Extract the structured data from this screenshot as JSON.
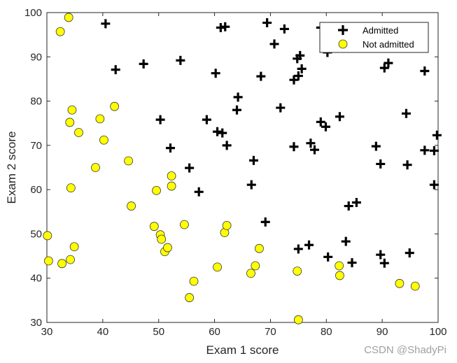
{
  "chart_data": {
    "type": "scatter",
    "xlabel": "Exam 1 score",
    "ylabel": "Exam 2 score",
    "xlim": [
      30,
      100
    ],
    "ylim": [
      30,
      100
    ],
    "xticks": [
      "30",
      "40",
      "50",
      "60",
      "70",
      "80",
      "90",
      "100"
    ],
    "yticks": [
      "30",
      "40",
      "50",
      "60",
      "70",
      "80",
      "90",
      "100"
    ],
    "grid": false,
    "legend_position": "top-right",
    "series": [
      {
        "name": "Admitted",
        "marker": "plus",
        "color": "#000000",
        "points": [
          [
            40.5,
            97.5
          ],
          [
            61.1,
            96.6
          ],
          [
            61.9,
            96.8
          ],
          [
            69.4,
            97.7
          ],
          [
            72.5,
            96.3
          ],
          [
            70.7,
            92.9
          ],
          [
            79.0,
            96.6
          ],
          [
            80.2,
            91.0
          ],
          [
            74.8,
            89.6
          ],
          [
            75.3,
            90.3
          ],
          [
            74.2,
            84.8
          ],
          [
            75.0,
            85.7
          ],
          [
            75.6,
            87.3
          ],
          [
            68.3,
            85.6
          ],
          [
            60.2,
            86.3
          ],
          [
            53.9,
            89.2
          ],
          [
            47.3,
            88.4
          ],
          [
            42.3,
            87.1
          ],
          [
            90.4,
            87.5
          ],
          [
            91.1,
            88.6
          ],
          [
            97.6,
            86.8
          ],
          [
            64.2,
            80.9
          ],
          [
            64.0,
            78.0
          ],
          [
            71.8,
            78.5
          ],
          [
            50.3,
            75.8
          ],
          [
            58.6,
            75.8
          ],
          [
            60.5,
            73.1
          ],
          [
            61.4,
            72.8
          ],
          [
            62.2,
            70.0
          ],
          [
            52.1,
            69.4
          ],
          [
            79.0,
            75.3
          ],
          [
            79.9,
            74.2
          ],
          [
            82.4,
            76.5
          ],
          [
            94.3,
            77.2
          ],
          [
            99.8,
            72.3
          ],
          [
            74.2,
            69.7
          ],
          [
            77.2,
            70.5
          ],
          [
            77.9,
            69.0
          ],
          [
            88.9,
            69.8
          ],
          [
            97.6,
            68.9
          ],
          [
            99.3,
            68.8
          ],
          [
            67.0,
            66.6
          ],
          [
            89.7,
            65.8
          ],
          [
            94.5,
            65.6
          ],
          [
            55.5,
            64.9
          ],
          [
            66.6,
            61.1
          ],
          [
            99.3,
            61.1
          ],
          [
            57.2,
            59.5
          ],
          [
            84.0,
            56.3
          ],
          [
            85.4,
            57.1
          ],
          [
            69.1,
            52.7
          ],
          [
            75.0,
            46.6
          ],
          [
            76.9,
            47.5
          ],
          [
            83.5,
            48.3
          ],
          [
            80.3,
            44.8
          ],
          [
            84.6,
            43.5
          ],
          [
            89.7,
            45.3
          ],
          [
            90.4,
            43.4
          ],
          [
            94.9,
            45.7
          ]
        ]
      },
      {
        "name": "Not admitted",
        "marker": "circle",
        "color": "#ffff00",
        "points": [
          [
            33.9,
            98.9
          ],
          [
            32.4,
            95.7
          ],
          [
            34.5,
            78.0
          ],
          [
            42.1,
            78.8
          ],
          [
            34.1,
            75.2
          ],
          [
            35.7,
            72.9
          ],
          [
            39.5,
            76.0
          ],
          [
            40.2,
            71.2
          ],
          [
            44.6,
            66.5
          ],
          [
            38.7,
            65.0
          ],
          [
            52.3,
            63.1
          ],
          [
            52.3,
            60.8
          ],
          [
            49.6,
            59.8
          ],
          [
            34.3,
            60.4
          ],
          [
            45.1,
            56.3
          ],
          [
            30.1,
            49.6
          ],
          [
            34.9,
            47.1
          ],
          [
            49.2,
            51.7
          ],
          [
            50.3,
            49.8
          ],
          [
            50.5,
            48.8
          ],
          [
            51.1,
            46.0
          ],
          [
            51.6,
            46.9
          ],
          [
            54.6,
            52.1
          ],
          [
            61.8,
            50.3
          ],
          [
            62.2,
            51.9
          ],
          [
            30.3,
            43.9
          ],
          [
            32.7,
            43.3
          ],
          [
            34.2,
            44.2
          ],
          [
            60.5,
            42.5
          ],
          [
            67.3,
            42.8
          ],
          [
            68.0,
            46.7
          ],
          [
            66.5,
            41.1
          ],
          [
            74.8,
            41.6
          ],
          [
            82.3,
            42.8
          ],
          [
            82.4,
            40.6
          ],
          [
            56.3,
            39.3
          ],
          [
            55.5,
            35.6
          ],
          [
            75.0,
            30.6
          ],
          [
            93.1,
            38.8
          ],
          [
            95.9,
            38.2
          ]
        ]
      }
    ]
  },
  "legend": {
    "items": [
      {
        "label": "Admitted",
        "marker": "plus"
      },
      {
        "label": "Not admitted",
        "marker": "circle"
      }
    ]
  },
  "watermark": {
    "text": "CSDN @ShadyPi"
  },
  "colors": {
    "axis": "#262626",
    "plus": "#000000",
    "circle_fill": "#ffff00",
    "circle_stroke": "#333333",
    "watermark": "#a0a0a0"
  }
}
